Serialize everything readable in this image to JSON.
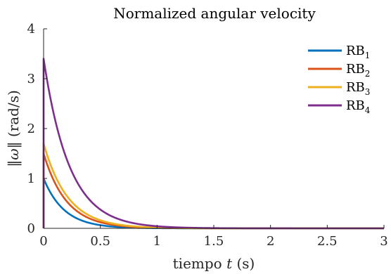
{
  "chart_data": {
    "type": "line",
    "title": "Normalized angular velocity",
    "xlabel": "tiempo",
    "xlabel_var": "t",
    "xlabel_unit": "(s)",
    "ylabel_left": "‖",
    "ylabel_var": "ω",
    "ylabel_right": "‖ (rad/s)",
    "xlim": [
      0,
      3
    ],
    "ylim": [
      0,
      4
    ],
    "xticks": [
      "0",
      "0.5",
      "1",
      "1.5",
      "2",
      "2.5",
      "3"
    ],
    "yticks": [
      "0",
      "1",
      "2",
      "3",
      "4"
    ],
    "grid": false,
    "legend_position": "top-right",
    "series": [
      {
        "name": "RB",
        "sub": "1",
        "color": "#0072BD",
        "peak": 1.0,
        "decay": 5.5
      },
      {
        "name": "RB",
        "sub": "2",
        "color": "#D95319",
        "peak": 1.5,
        "decay": 5.0
      },
      {
        "name": "RB",
        "sub": "3",
        "color": "#EDB120",
        "peak": 1.7,
        "decay": 4.7
      },
      {
        "name": "RB",
        "sub": "4",
        "color": "#7E2F8E",
        "peak": 3.4,
        "decay": 4.4
      }
    ]
  }
}
